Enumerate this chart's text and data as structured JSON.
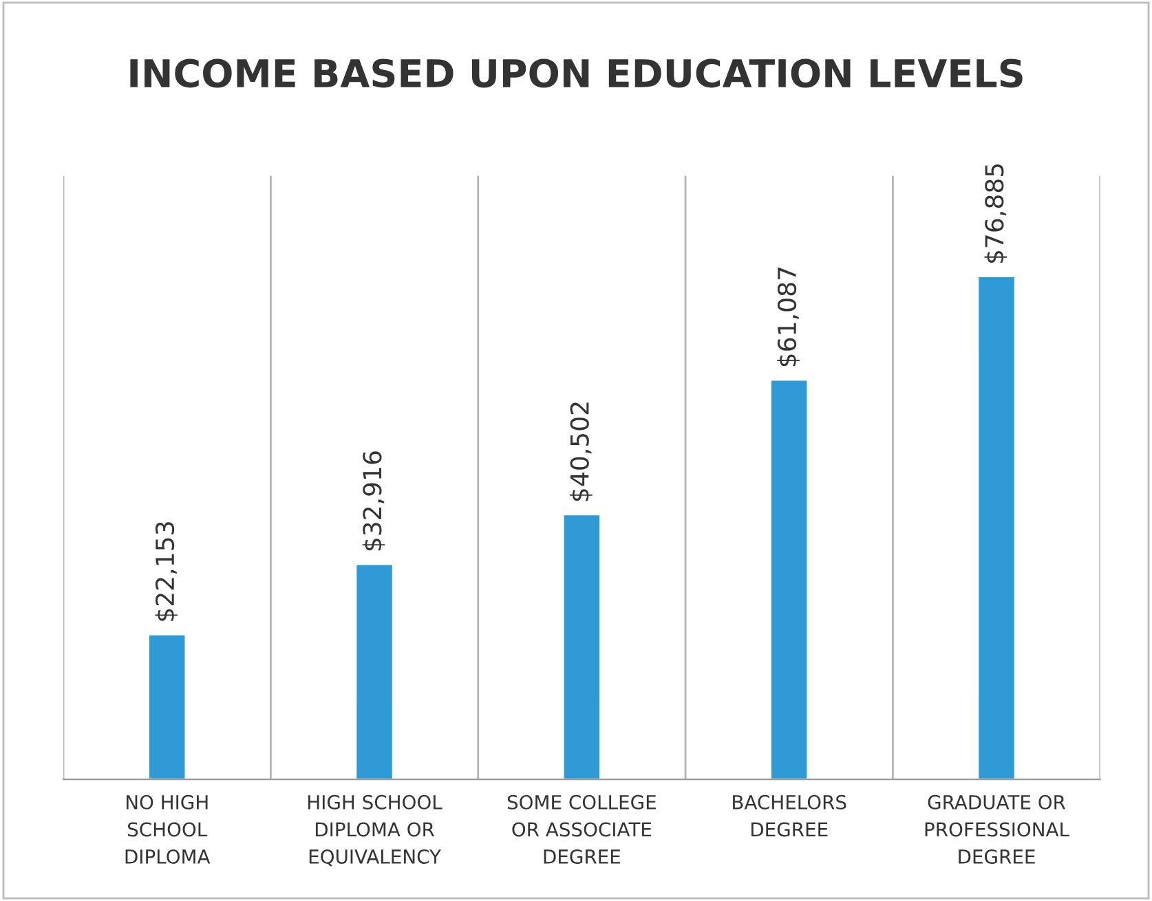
{
  "chart_data": {
    "type": "bar",
    "title": "INCOME BASED UPON EDUCATION LEVELS",
    "categories": [
      "NO HIGH\nSCHOOL\nDIPLOMA",
      "HIGH SCHOOL\nDIPLOMA OR\nEQUIVALENCY",
      "SOME COLLEGE\nOR ASSOCIATE\nDEGREE",
      "BACHELORS\nDEGREE",
      "GRADUATE OR\nPROFESSIONAL\nDEGREE"
    ],
    "values": [
      22153,
      32916,
      40502,
      61087,
      76885
    ],
    "value_labels": [
      "$22,153",
      "$32,916",
      "$40,502",
      "$61,087",
      "$76,885"
    ],
    "color": "#2e9bd6",
    "grid": "x",
    "tick_labels": "x",
    "legend": false
  }
}
